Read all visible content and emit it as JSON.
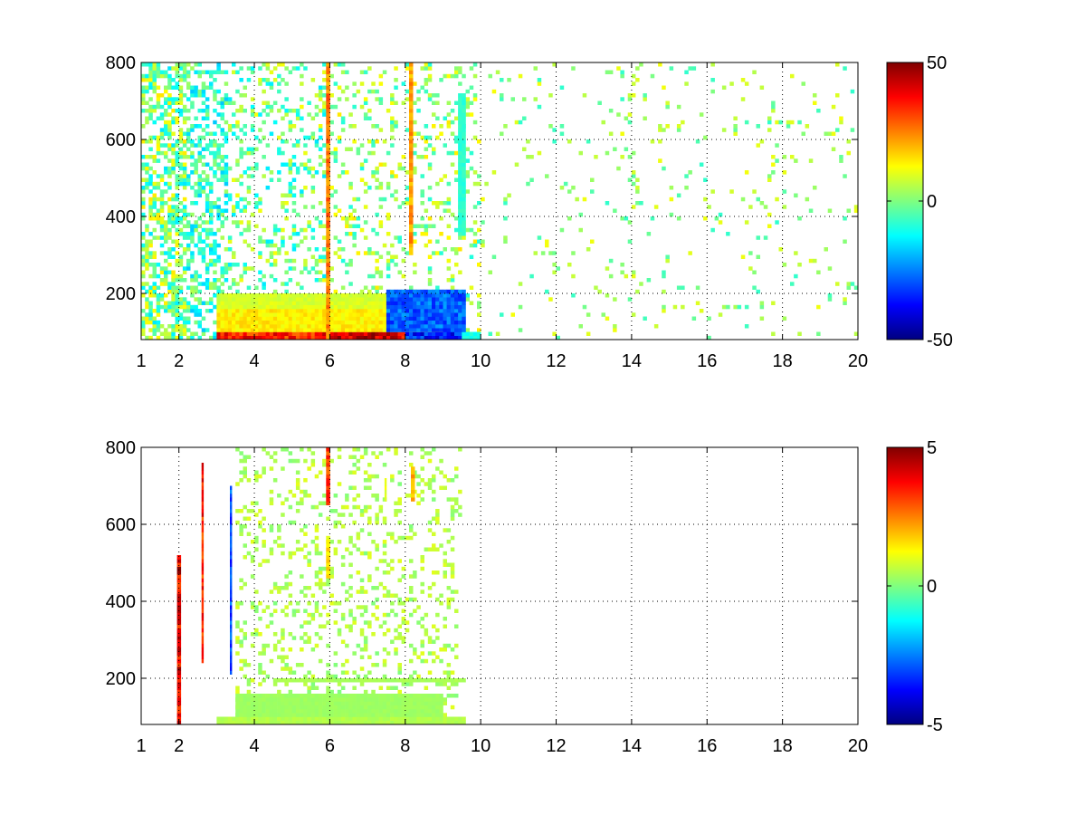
{
  "chart_data": [
    {
      "type": "heatmap",
      "title": "",
      "xlabel": "",
      "ylabel": "",
      "xlim": [
        1,
        20
      ],
      "ylim": [
        80,
        800
      ],
      "xticks": [
        {
          "value": 1,
          "label": "1"
        },
        {
          "value": 2,
          "label": "2"
        },
        {
          "value": 4,
          "label": "4"
        },
        {
          "value": 6,
          "label": "6"
        },
        {
          "value": 8,
          "label": "8"
        },
        {
          "value": 10,
          "label": "10"
        },
        {
          "value": 12,
          "label": "12"
        },
        {
          "value": 14,
          "label": "14"
        },
        {
          "value": 16,
          "label": "16"
        },
        {
          "value": 18,
          "label": "18"
        },
        {
          "value": 20,
          "label": "20"
        }
      ],
      "yticks": [
        {
          "value": 200,
          "label": "200"
        },
        {
          "value": 400,
          "label": "400"
        },
        {
          "value": 600,
          "label": "600"
        },
        {
          "value": 800,
          "label": "800"
        }
      ],
      "grid": true,
      "colormap": "jet",
      "clim": [
        -50,
        50
      ],
      "colorbar": {
        "ticks": [
          {
            "value": 50,
            "label": "50"
          },
          {
            "value": 0,
            "label": "0"
          },
          {
            "value": -50,
            "label": "-50"
          }
        ]
      },
      "cell_size": {
        "dx": 0.1,
        "dy": 10
      },
      "blocks": [
        {
          "x": [
            3.0,
            6.0
          ],
          "y": [
            80,
            100
          ],
          "value": 35
        },
        {
          "x": [
            6.0,
            8.0
          ],
          "y": [
            80,
            100
          ],
          "value": 42
        },
        {
          "x": [
            8.0,
            9.5
          ],
          "y": [
            80,
            100
          ],
          "value": -35
        },
        {
          "x": [
            9.5,
            10.0
          ],
          "y": [
            80,
            100
          ],
          "value": -10
        },
        {
          "x": [
            3.0,
            9.0
          ],
          "y": [
            100,
            160
          ],
          "value": 14
        },
        {
          "x": [
            3.0,
            8.5
          ],
          "y": [
            160,
            180
          ],
          "value": 9
        },
        {
          "x": [
            3.0,
            9.6
          ],
          "y": [
            180,
            200
          ],
          "value": 8
        },
        {
          "x": [
            7.5,
            9.6
          ],
          "y": [
            100,
            210
          ],
          "value": -28
        },
        {
          "x": [
            5.9,
            6.0
          ],
          "y": [
            80,
            800
          ],
          "value": 25
        },
        {
          "x": [
            8.1,
            8.2
          ],
          "y": [
            300,
            800
          ],
          "value": 22
        },
        {
          "x": [
            9.4,
            9.6
          ],
          "y": [
            350,
            720
          ],
          "value": -8
        }
      ],
      "column_bands": [
        {
          "x": [
            1.0,
            2.2
          ],
          "density": 0.55,
          "value_range": [
            -15,
            15
          ]
        },
        {
          "x": [
            2.2,
            3.3
          ],
          "density": 0.45,
          "value_range": [
            -18,
            5
          ]
        },
        {
          "x": [
            3.3,
            6.0
          ],
          "density": 0.25,
          "value_range": [
            -15,
            12
          ]
        },
        {
          "x": [
            6.0,
            10.0
          ],
          "density": 0.18,
          "value_range": [
            -10,
            15
          ]
        },
        {
          "x": [
            10.0,
            20.0
          ],
          "density": 0.05,
          "value_range": [
            -8,
            12
          ]
        }
      ]
    },
    {
      "type": "heatmap",
      "title": "",
      "xlabel": "",
      "ylabel": "",
      "xlim": [
        1,
        20
      ],
      "ylim": [
        80,
        800
      ],
      "xticks": [
        {
          "value": 1,
          "label": "1"
        },
        {
          "value": 2,
          "label": "2"
        },
        {
          "value": 4,
          "label": "4"
        },
        {
          "value": 6,
          "label": "6"
        },
        {
          "value": 8,
          "label": "8"
        },
        {
          "value": 10,
          "label": "10"
        },
        {
          "value": 12,
          "label": "12"
        },
        {
          "value": 14,
          "label": "14"
        },
        {
          "value": 16,
          "label": "16"
        },
        {
          "value": 18,
          "label": "18"
        },
        {
          "value": 20,
          "label": "20"
        }
      ],
      "yticks": [
        {
          "value": 200,
          "label": "200"
        },
        {
          "value": 400,
          "label": "400"
        },
        {
          "value": 600,
          "label": "600"
        },
        {
          "value": 800,
          "label": "800"
        }
      ],
      "grid": true,
      "colormap": "jet",
      "clim": [
        -5,
        5
      ],
      "colorbar": {
        "ticks": [
          {
            "value": 5,
            "label": "5"
          },
          {
            "value": 0,
            "label": "0"
          },
          {
            "value": -5,
            "label": "-5"
          }
        ]
      },
      "cell_size": {
        "dx": 0.1,
        "dy": 10
      },
      "blocks": [
        {
          "x": [
            3.0,
            9.6
          ],
          "y": [
            80,
            100
          ],
          "value": 0.5
        },
        {
          "x": [
            3.5,
            9.0
          ],
          "y": [
            100,
            160
          ],
          "value": 0.3
        },
        {
          "x": [
            4.5,
            9.6
          ],
          "y": [
            190,
            200
          ],
          "value": 0.4
        },
        {
          "x": [
            5.9,
            6.0
          ],
          "y": [
            650,
            800
          ],
          "value": 3
        },
        {
          "x": [
            5.9,
            6.0
          ],
          "y": [
            460,
            560
          ],
          "value": 1.5
        },
        {
          "x": [
            8.15,
            8.25
          ],
          "y": [
            660,
            750
          ],
          "value": 2
        },
        {
          "x": [
            7.45,
            7.5
          ],
          "y": [
            660,
            720
          ],
          "value": 1
        },
        {
          "x": [
            1.95,
            2.05
          ],
          "y": [
            80,
            520
          ],
          "value": 4
        },
        {
          "x": [
            2.6,
            2.65
          ],
          "y": [
            240,
            760
          ],
          "value": 3.5
        },
        {
          "x": [
            3.35,
            3.4
          ],
          "y": [
            210,
            700
          ],
          "value": -3
        }
      ],
      "column_bands": [
        {
          "x": [
            3.5,
            9.5
          ],
          "density": 0.2,
          "value_range": [
            0,
            1
          ]
        }
      ]
    }
  ]
}
